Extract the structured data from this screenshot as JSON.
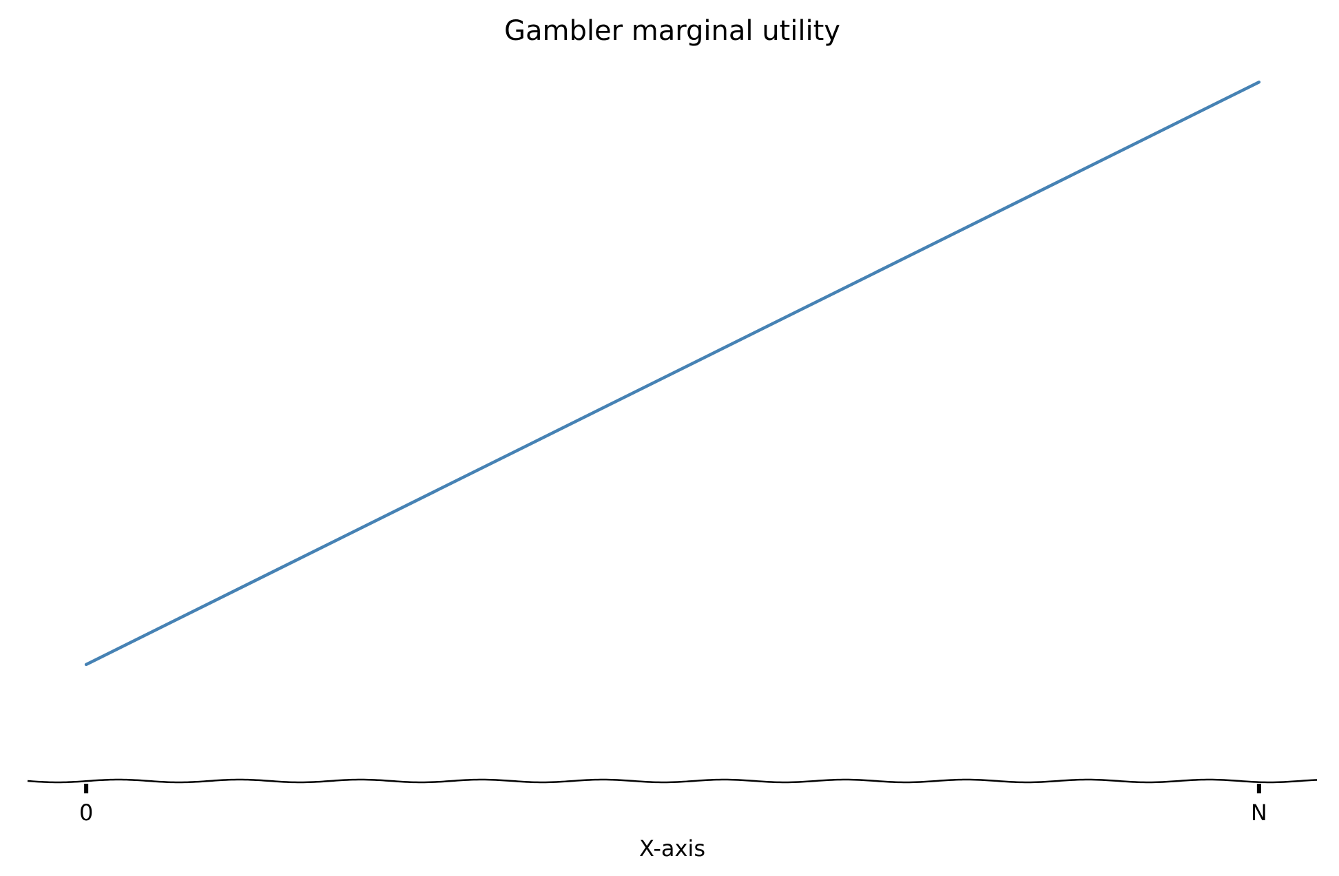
{
  "chart_data": {
    "type": "line",
    "title": "Gambler marginal utility",
    "x_label": "X-axis",
    "x": [
      0,
      1
    ],
    "values": [
      0.16,
      0.96
    ],
    "color": "#4682b4",
    "xlim": [
      -0.05,
      1.05
    ],
    "ylim": [
      0,
      1
    ],
    "xticks": [
      0,
      {
        "value": 1,
        "label": "N"
      }
    ]
  }
}
